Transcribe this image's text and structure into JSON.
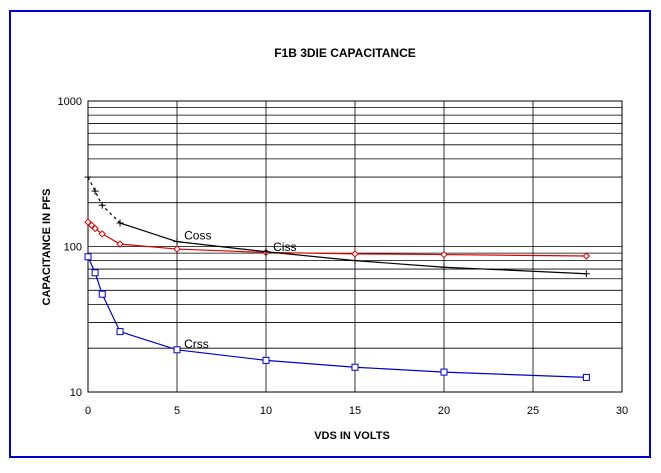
{
  "chart_data": {
    "type": "line",
    "title": "F1B 3DIE  CAPACITANCE",
    "xlabel": "VDS IN VOLTS",
    "ylabel": "CAPACITANCE IN PFS",
    "xlim": [
      0,
      30
    ],
    "ylim": [
      10,
      1000
    ],
    "yscale": "log",
    "grid": true,
    "legend": "none",
    "xticks": [
      "0",
      "5",
      "10",
      "15",
      "20",
      "25",
      "30"
    ],
    "yticks": [
      "10",
      "100",
      "1000"
    ],
    "series": [
      {
        "name": "Ciss",
        "color": "#dd0000",
        "marker": "diamond",
        "x": [
          0,
          0.2,
          0.4,
          0.8,
          1.8,
          5,
          10,
          15,
          20,
          28
        ],
        "y": [
          147,
          140,
          133,
          122,
          104,
          96,
          91,
          89,
          88,
          86
        ]
      },
      {
        "name": "Coss",
        "color": "#000000",
        "marker": "plus",
        "dashed_start": true,
        "x": [
          0,
          0.4,
          0.8,
          1.8,
          5,
          10,
          15,
          20,
          28
        ],
        "y": [
          300,
          240,
          192,
          145,
          108,
          92,
          80,
          72,
          65
        ]
      },
      {
        "name": "Crss",
        "color": "#0000cc",
        "marker": "square",
        "x": [
          0,
          0.4,
          0.8,
          1.8,
          5,
          10,
          15,
          20,
          28
        ],
        "y": [
          85,
          66,
          47,
          26,
          19.5,
          16.5,
          14.8,
          13.7,
          12.6
        ]
      }
    ],
    "annotations": [
      {
        "text": "Coss",
        "x": 5.4,
        "y": 112
      },
      {
        "text": "Ciss",
        "x": 10.4,
        "y": 93
      },
      {
        "text": "Crss",
        "x": 5.4,
        "y": 20
      }
    ]
  }
}
